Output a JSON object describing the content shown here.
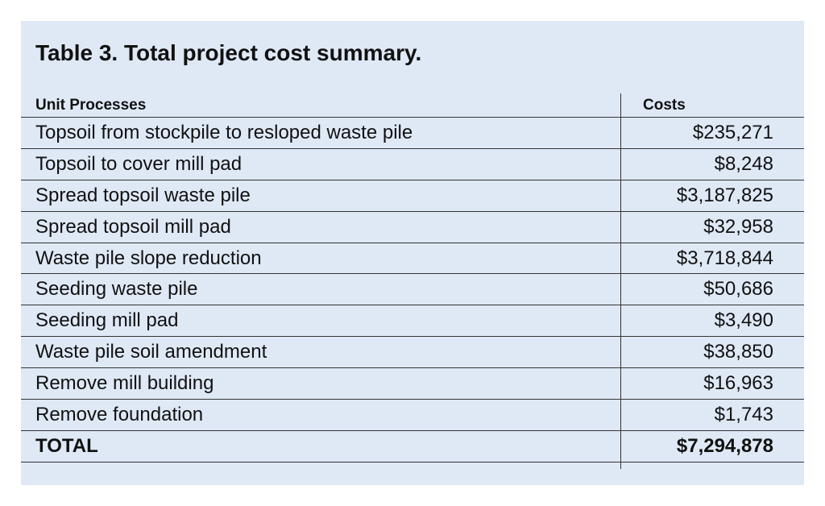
{
  "title": "Table 3. Total project cost summary.",
  "columns": {
    "process": "Unit Processes",
    "cost": "Costs"
  },
  "rows": [
    {
      "process": "Topsoil from stockpile to resloped waste pile",
      "cost": "$235,271"
    },
    {
      "process": "Topsoil to cover mill pad",
      "cost": "$8,248"
    },
    {
      "process": "Spread topsoil waste pile",
      "cost": "$3,187,825"
    },
    {
      "process": "Spread topsoil mill pad",
      "cost": "$32,958"
    },
    {
      "process": "Waste pile slope reduction",
      "cost": "$3,718,844"
    },
    {
      "process": "Seeding waste pile",
      "cost": "$50,686"
    },
    {
      "process": "Seeding mill pad",
      "cost": "$3,490"
    },
    {
      "process": "Waste pile soil amendment",
      "cost": "$38,850"
    },
    {
      "process": "Remove mill building",
      "cost": "$16,963"
    },
    {
      "process": "Remove foundation",
      "cost": "$1,743"
    }
  ],
  "total": {
    "label": "TOTAL",
    "cost": "$7,294,878"
  }
}
